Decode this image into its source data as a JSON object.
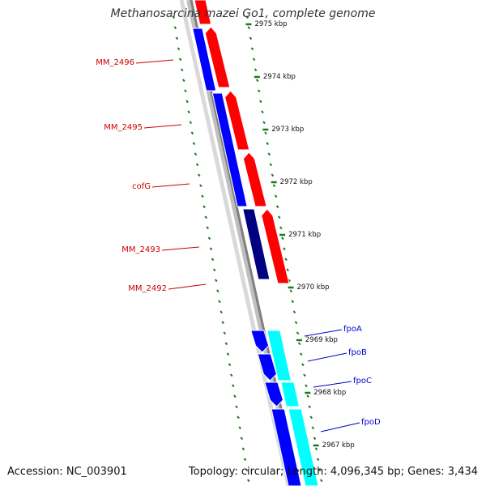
{
  "title": "Methanosarcina mazei Go1, complete genome",
  "footer": {
    "accession": "Accession: NC_003901",
    "topology": "Topology: circular; Length: 4,096,345 bp; Genes: 3,434"
  },
  "colors": {
    "forward_cds": "#ff0000",
    "reverse_cds": "#0000ff",
    "reverse_cds_dark": "#000080",
    "forward_cds_light": "#00ffff",
    "backbone": "#808080",
    "tick": "#1a7a1a",
    "label_forward": "#cc0000",
    "label_reverse": "#0000cc"
  },
  "scale_labels": [
    "2975 kbp",
    "2974 kbp",
    "2973 kbp",
    "2972 kbp",
    "2971 kbp",
    "2970 kbp",
    "2969 kbp",
    "2968 kbp",
    "2967 kbp"
  ],
  "gene_labels": [
    {
      "name": "MM_2496",
      "strand": "forward"
    },
    {
      "name": "MM_2495",
      "strand": "forward"
    },
    {
      "name": "cofG",
      "strand": "forward"
    },
    {
      "name": "MM_2493",
      "strand": "forward"
    },
    {
      "name": "MM_2492",
      "strand": "forward"
    },
    {
      "name": "fpoA",
      "strand": "reverse"
    },
    {
      "name": "fpoB",
      "strand": "reverse"
    },
    {
      "name": "fpoC",
      "strand": "reverse"
    },
    {
      "name": "fpoD",
      "strand": "reverse"
    }
  ]
}
